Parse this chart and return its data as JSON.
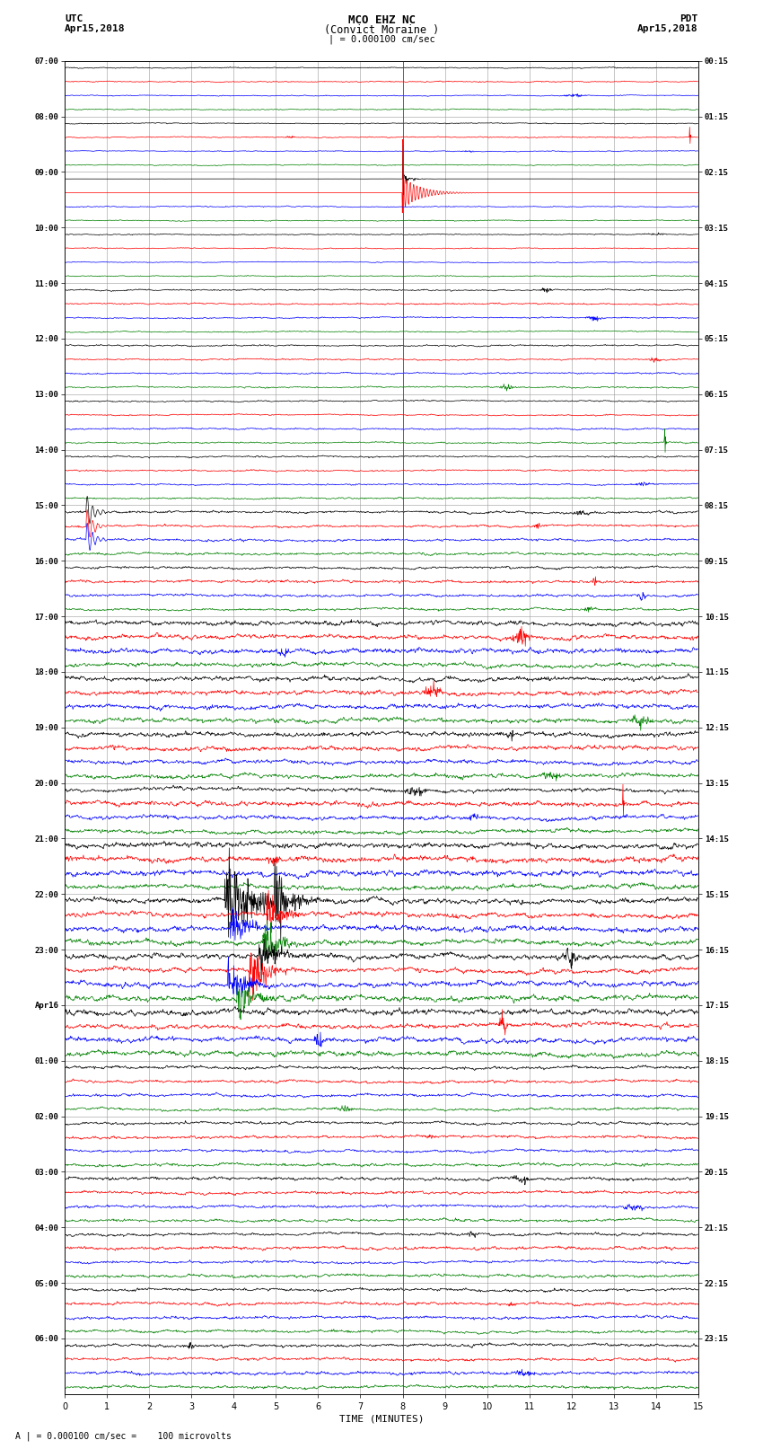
{
  "title_line1": "MCO EHZ NC",
  "title_line2": "(Convict Moraine )",
  "title_scale": "| = 0.000100 cm/sec",
  "left_header_line1": "UTC",
  "left_header_line2": "Apr15,2018",
  "right_header_line1": "PDT",
  "right_header_line2": "Apr15,2018",
  "footer": "A | = 0.000100 cm/sec =    100 microvolts",
  "xlabel": "TIME (MINUTES)",
  "xticks": [
    0,
    1,
    2,
    3,
    4,
    5,
    6,
    7,
    8,
    9,
    10,
    11,
    12,
    13,
    14,
    15
  ],
  "bg_color": "white",
  "trace_color_cycle": [
    "black",
    "red",
    "blue",
    "green"
  ],
  "left_labels_utc": [
    "07:00",
    "08:00",
    "09:00",
    "10:00",
    "11:00",
    "12:00",
    "13:00",
    "14:00",
    "15:00",
    "16:00",
    "17:00",
    "18:00",
    "19:00",
    "20:00",
    "21:00",
    "22:00",
    "23:00",
    "Apr16",
    "01:00",
    "02:00",
    "03:00",
    "04:00",
    "05:00",
    "06:00"
  ],
  "right_labels_pdt": [
    "00:15",
    "01:15",
    "02:15",
    "03:15",
    "04:15",
    "05:15",
    "06:15",
    "07:15",
    "08:15",
    "09:15",
    "10:15",
    "11:15",
    "12:15",
    "13:15",
    "14:15",
    "15:15",
    "16:15",
    "17:15",
    "18:15",
    "19:15",
    "20:15",
    "21:15",
    "22:15",
    "23:15"
  ],
  "n_hour_blocks": 24,
  "traces_per_block": 4,
  "seismic_seed": 12345,
  "grid_color": "#999999",
  "grid_linewidth": 0.4,
  "trace_linewidth": 0.5
}
